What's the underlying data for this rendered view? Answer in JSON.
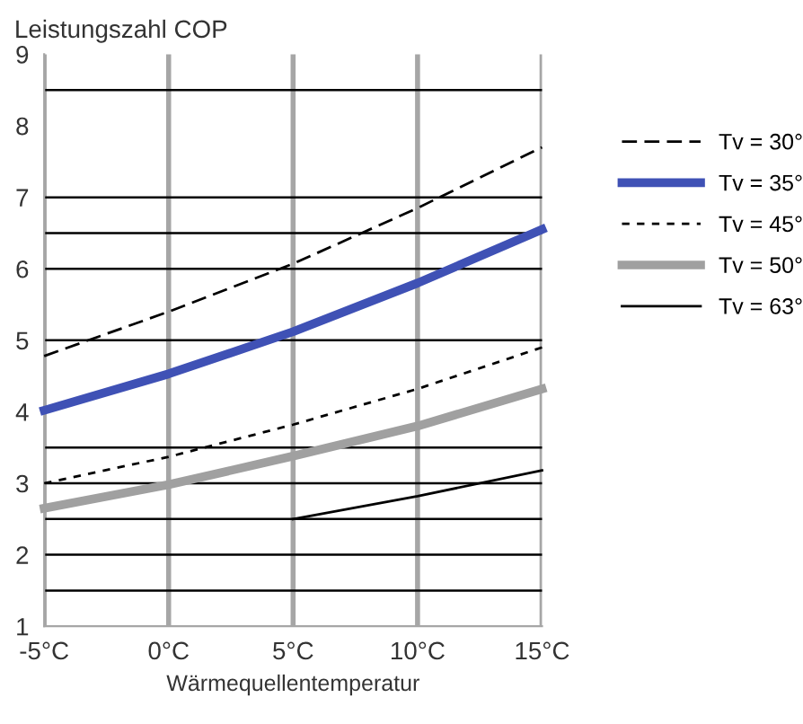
{
  "chart_data": {
    "type": "line",
    "ylabel": "Leistungszahl COP",
    "xlabel": "Wärmequellentemperatur",
    "x": [
      -5,
      0,
      5,
      10,
      15
    ],
    "xlim": [
      -5,
      15
    ],
    "xticks": [
      {
        "value": -5,
        "label": "-5°C"
      },
      {
        "value": 0,
        "label": "0°C"
      },
      {
        "value": 5,
        "label": "5°C"
      },
      {
        "value": 10,
        "label": "10°C"
      },
      {
        "value": 15,
        "label": "15°C"
      }
    ],
    "ylim": [
      1,
      9
    ],
    "yticks": [
      1,
      2,
      3,
      4,
      5,
      6,
      7,
      8,
      9
    ],
    "grid": "x",
    "legend": "right",
    "marker": "none",
    "ref_lines": [
      {
        "axis": "y",
        "value": 8.5,
        "color": "#000000"
      },
      {
        "axis": "y",
        "value": 7,
        "color": "#000000"
      },
      {
        "axis": "y",
        "value": 6.5,
        "color": "#000000"
      },
      {
        "axis": "y",
        "value": 6,
        "color": "#000000"
      },
      {
        "axis": "y",
        "value": 5,
        "color": "#000000"
      },
      {
        "axis": "y",
        "value": 3.5,
        "color": "#000000"
      },
      {
        "axis": "y",
        "value": 3,
        "color": "#000000"
      },
      {
        "axis": "y",
        "value": 2.5,
        "color": "#000000"
      },
      {
        "axis": "y",
        "value": 2,
        "color": "#000000"
      },
      {
        "axis": "y",
        "value": 1.5,
        "color": "#000000"
      }
    ],
    "series": [
      {
        "name": "Tv = 30°",
        "color": "#000000",
        "line_style": "dashed",
        "values": [
          4.78,
          5.4,
          6.07,
          6.85,
          7.7
        ]
      },
      {
        "name": "Tv = 35°",
        "color": "#3f51b5",
        "line_style": "solid",
        "values": [
          4.02,
          4.53,
          5.12,
          5.8,
          6.55
        ]
      },
      {
        "name": "Tv = 45°",
        "color": "#000000",
        "line_style": "dotted",
        "values": [
          3.0,
          3.37,
          3.82,
          4.32,
          4.9
        ]
      },
      {
        "name": "Tv = 50°",
        "color": "#a0a0a0",
        "line_style": "solid",
        "values": [
          2.65,
          2.98,
          3.38,
          3.8,
          4.32
        ]
      },
      {
        "name": "Tv = 63°",
        "color": "#000000",
        "line_style": "solid",
        "x": [
          5,
          10,
          15
        ],
        "values": [
          2.5,
          2.82,
          3.18
        ]
      }
    ]
  }
}
